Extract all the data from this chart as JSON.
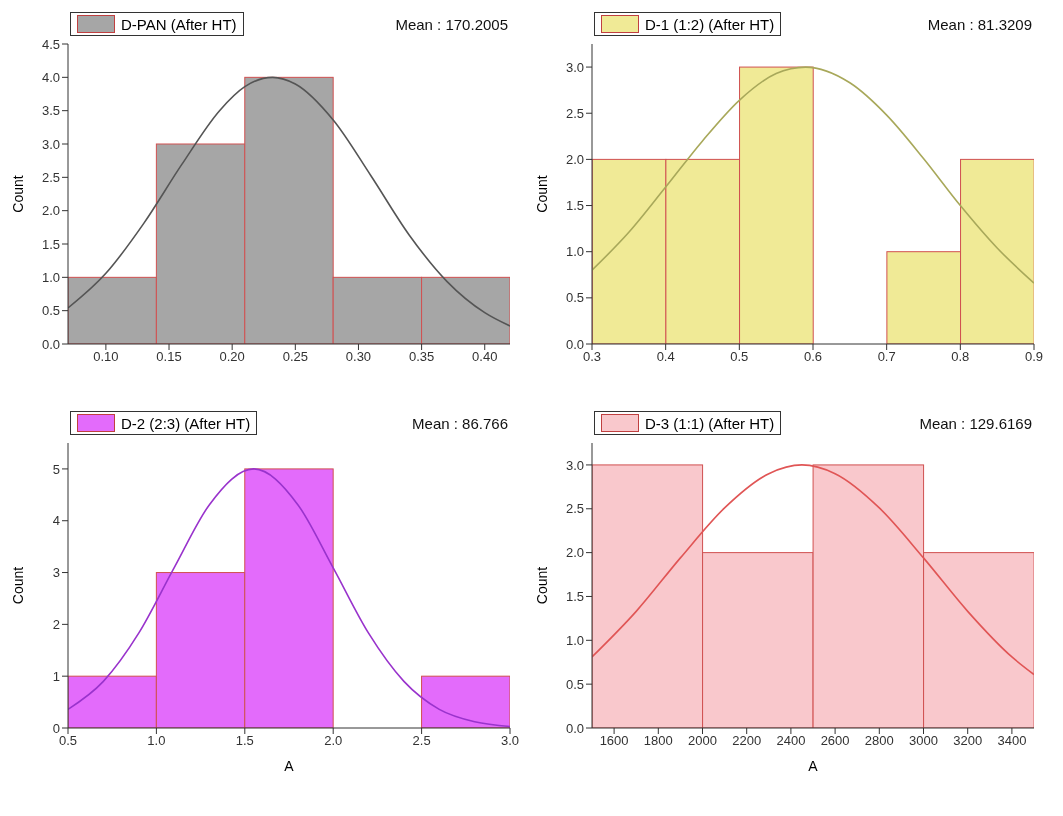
{
  "chart_data": [
    {
      "type": "histogram",
      "ylabel": "Count",
      "annotations": [
        "Mean : 170.2005"
      ],
      "legend": "top left",
      "bins": [
        0.07,
        0.14,
        0.21,
        0.28,
        0.35,
        0.42
      ],
      "xlim": [
        0.07,
        0.42
      ],
      "xticks": [
        {
          "value": 0.1,
          "label": "0.10"
        },
        {
          "value": 0.15,
          "label": "0.15"
        },
        {
          "value": 0.2,
          "label": "0.20"
        },
        {
          "value": 0.25,
          "label": "0.25"
        },
        {
          "value": 0.3,
          "label": "0.30"
        },
        {
          "value": 0.35,
          "label": "0.35"
        },
        {
          "value": 0.4,
          "label": "0.40"
        }
      ],
      "ylim": [
        0,
        4.5
      ],
      "yticks": [
        {
          "value": 0,
          "label": "0.0"
        },
        0.5,
        {
          "value": 1,
          "label": "1.0"
        },
        1.5,
        {
          "value": 2,
          "label": "2.0"
        },
        2.5,
        {
          "value": 3,
          "label": "3.0"
        },
        3.5,
        {
          "value": 4,
          "label": "4.0"
        },
        4.5
      ],
      "series": [
        {
          "name": "D-PAN (After HT)",
          "color": "#a6a6a6",
          "values": [
            1,
            3,
            4,
            1,
            1
          ]
        },
        {
          "type": "line",
          "color": "#555555",
          "x": [
            0.07,
            0.1,
            0.13,
            0.16,
            0.19,
            0.21,
            0.232,
            0.25,
            0.28,
            0.31,
            0.34,
            0.37,
            0.4,
            0.42
          ],
          "values": [
            0.54,
            1.06,
            1.81,
            2.69,
            3.5,
            3.86,
            4.0,
            3.9,
            3.36,
            2.52,
            1.64,
            0.94,
            0.47,
            0.27
          ]
        }
      ]
    },
    {
      "type": "histogram",
      "ylabel": "Count",
      "annotations": [
        "Mean : 81.3209"
      ],
      "legend": "top left",
      "bins": [
        0.3,
        0.4,
        0.5,
        0.6,
        0.7,
        0.8,
        0.9
      ],
      "xlim": [
        0.3,
        0.9
      ],
      "xticks": [
        0.3,
        0.4,
        0.5,
        0.6,
        0.7,
        0.8,
        0.9
      ],
      "ylim": [
        0,
        3.25
      ],
      "yticks": [
        {
          "value": 0,
          "label": "0.0"
        },
        0.5,
        {
          "value": 1,
          "label": "1.0"
        },
        1.5,
        {
          "value": 2,
          "label": "2.0"
        },
        2.5,
        {
          "value": 3,
          "label": "3.0"
        }
      ],
      "series": [
        {
          "name": "D-1 (1:2) (After HT)",
          "color": "#f0ea96",
          "values": [
            2,
            2,
            3,
            0,
            1,
            2
          ]
        },
        {
          "type": "line",
          "color": "#a8a85a",
          "x": [
            0.3,
            0.35,
            0.4,
            0.45,
            0.5,
            0.55,
            0.59,
            0.65,
            0.7,
            0.75,
            0.8,
            0.85,
            0.9
          ],
          "values": [
            0.8,
            1.21,
            1.7,
            2.2,
            2.64,
            2.93,
            3.0,
            2.83,
            2.48,
            2.01,
            1.5,
            1.04,
            0.66
          ]
        }
      ]
    },
    {
      "type": "histogram",
      "xlabel": "A",
      "ylabel": "Count",
      "annotations": [
        "Mean : 86.766"
      ],
      "legend": "top left",
      "bins": [
        0.5,
        1.0,
        1.5,
        2.0,
        2.5,
        3.0
      ],
      "xlim": [
        0.5,
        3.0
      ],
      "xticks": [
        0.5,
        {
          "value": 1,
          "label": "1.0"
        },
        1.5,
        {
          "value": 2,
          "label": "2.0"
        },
        2.5,
        {
          "value": 3,
          "label": "3.0"
        }
      ],
      "ylim": [
        0,
        5.5
      ],
      "yticks": [
        0,
        1,
        2,
        3,
        4,
        5
      ],
      "series": [
        {
          "name": "D-2 (2:3) (After HT)",
          "color": "#e36bfb",
          "values": [
            1,
            3,
            5,
            0,
            1
          ]
        },
        {
          "type": "line",
          "color": "#9933cc",
          "x": [
            0.5,
            0.7,
            0.9,
            1.1,
            1.3,
            1.55,
            1.8,
            2.0,
            2.2,
            2.4,
            2.6,
            2.8,
            3.0
          ],
          "values": [
            0.36,
            0.9,
            1.83,
            3.09,
            4.31,
            5.0,
            4.31,
            3.09,
            1.83,
            0.9,
            0.36,
            0.12,
            0.03
          ]
        }
      ]
    },
    {
      "type": "histogram",
      "xlabel": "A",
      "ylabel": "Count",
      "annotations": [
        "Mean : 129.6169"
      ],
      "legend": "top left",
      "bins": [
        1500,
        2000,
        2500,
        3000,
        3500
      ],
      "xlim": [
        1500,
        3500
      ],
      "xticks": [
        1600,
        1800,
        2000,
        2200,
        2400,
        2600,
        2800,
        3000,
        3200,
        3400
      ],
      "ylim": [
        0,
        3.25
      ],
      "yticks": [
        {
          "value": 0,
          "label": "0.0"
        },
        0.5,
        {
          "value": 1,
          "label": "1.0"
        },
        1.5,
        {
          "value": 2,
          "label": "2.0"
        },
        2.5,
        {
          "value": 3,
          "label": "3.0"
        }
      ],
      "series": [
        {
          "name": "D-3 (1:1) (After HT)",
          "color": "#f9c8cc",
          "values": [
            3,
            2,
            3,
            2
          ]
        },
        {
          "type": "line",
          "color": "#e05555",
          "x": [
            1500,
            1700,
            1900,
            2100,
            2300,
            2450,
            2600,
            2800,
            3000,
            3200,
            3400,
            3500
          ],
          "values": [
            0.81,
            1.33,
            1.94,
            2.51,
            2.9,
            3.0,
            2.9,
            2.51,
            1.94,
            1.33,
            0.81,
            0.61
          ]
        }
      ]
    }
  ]
}
